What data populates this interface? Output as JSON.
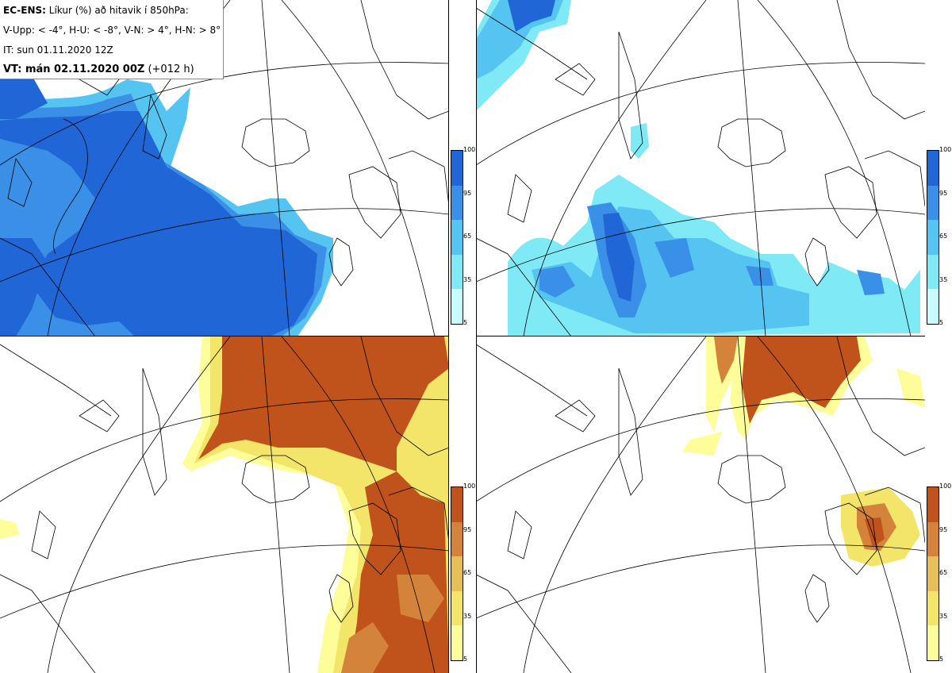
{
  "header": {
    "model": "EC-ENS:",
    "title": "Líkur (%) að hitavik í 850hPa:",
    "thresholds": "V-Upp: < -4°, H-U: < -8°, V-N: > 4°, H-N: > 8°",
    "init_time": "IT: sun 01.11.2020 12Z",
    "valid_label": "VT: mán 02.11.2020 00Z",
    "valid_offset": "(+012 h)"
  },
  "colorbar": {
    "ticks": [
      "100",
      "95",
      "65",
      "35",
      "5"
    ],
    "blue_colors": [
      "#2166d6",
      "#3a8fe6",
      "#55c4f0",
      "#7fe9f5",
      "#c8fbfd"
    ],
    "orange_colors": [
      "#c0521c",
      "#d4843a",
      "#e6be5a",
      "#f2e56a",
      "#fdfd9a"
    ]
  },
  "panels": [
    {
      "id": "cold-4",
      "palette": "blue"
    },
    {
      "id": "cold-8",
      "palette": "blue"
    },
    {
      "id": "warm-4",
      "palette": "orange"
    },
    {
      "id": "warm-8",
      "palette": "orange"
    }
  ]
}
